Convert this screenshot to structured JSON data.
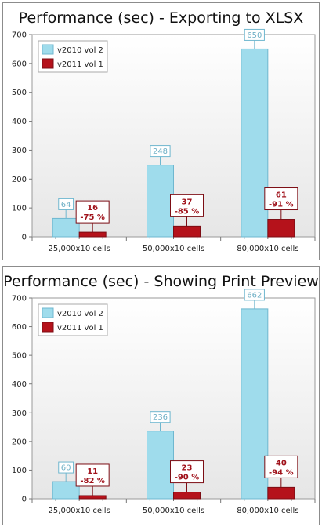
{
  "colors": {
    "series_a_fill": "#9fdcec",
    "series_a_stroke": "#6fb7cf",
    "series_b_fill": "#b5121b",
    "series_b_stroke": "#7c0d14",
    "label_b_text": "#a0121b",
    "plot_bg_top": "#ffffff",
    "plot_bg_bottom": "#e6e6e6"
  },
  "chart_data": [
    {
      "type": "bar",
      "title": "Performance (sec) - Exporting to XLSX",
      "xlabel": "",
      "ylabel": "",
      "ylim": [
        0,
        700
      ],
      "yticks": [
        "0",
        "100",
        "200",
        "300",
        "400",
        "500",
        "600",
        "700"
      ],
      "categories": [
        "25,000x10 cells",
        "50,000x10 cells",
        "80,000x10 cells"
      ],
      "legend_position": "top-left",
      "series": [
        {
          "name": "v2010 vol 2",
          "values": [
            64,
            248,
            650
          ],
          "labels": [
            "64",
            "248",
            "650"
          ]
        },
        {
          "name": "v2011 vol 1",
          "values": [
            16,
            37,
            61
          ],
          "labels": [
            "16",
            "37",
            "61"
          ],
          "sublabels": [
            "-75 %",
            "-85 %",
            "-91 %"
          ]
        }
      ]
    },
    {
      "type": "bar",
      "title": "Performance (sec) - Showing Print Preview",
      "xlabel": "",
      "ylabel": "",
      "ylim": [
        0,
        700
      ],
      "yticks": [
        "0",
        "100",
        "200",
        "300",
        "400",
        "500",
        "600",
        "700"
      ],
      "categories": [
        "25,000x10 cells",
        "50,000x10 cells",
        "80,000x10 cells"
      ],
      "legend_position": "top-left",
      "series": [
        {
          "name": "v2010 vol 2",
          "values": [
            60,
            236,
            662
          ],
          "labels": [
            "60",
            "236",
            "662"
          ]
        },
        {
          "name": "v2011 vol 1",
          "values": [
            11,
            23,
            40
          ],
          "labels": [
            "11",
            "23",
            "40"
          ],
          "sublabels": [
            "-82 %",
            "-90 %",
            "-94 %"
          ]
        }
      ]
    }
  ]
}
